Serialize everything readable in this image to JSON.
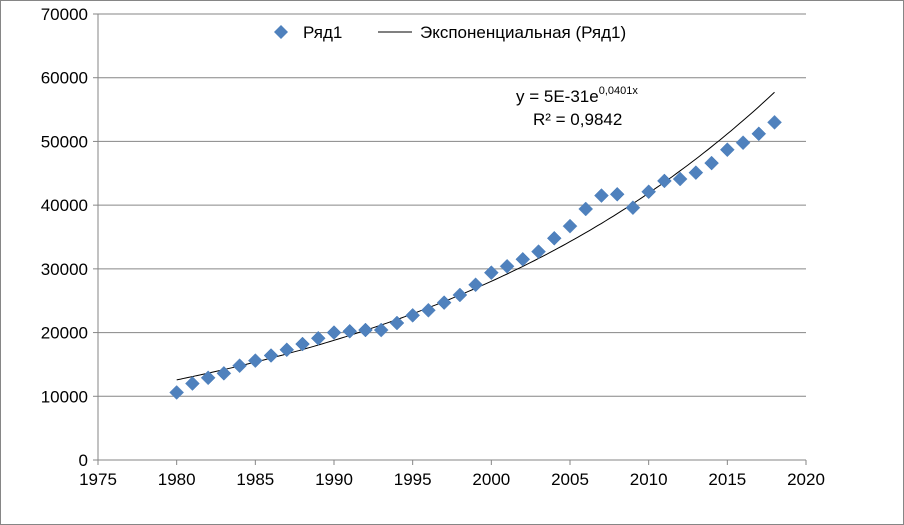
{
  "chart_data": {
    "type": "scatter",
    "title": "",
    "xlabel": "",
    "ylabel": "",
    "xlim": [
      1975,
      2020
    ],
    "ylim": [
      0,
      70000
    ],
    "x_ticks": [
      1975,
      1980,
      1985,
      1990,
      1995,
      2000,
      2005,
      2010,
      2015,
      2020
    ],
    "y_ticks": [
      0,
      10000,
      20000,
      30000,
      40000,
      50000,
      60000,
      70000
    ],
    "x_tick_labels": [
      "1975",
      "1980",
      "1985",
      "1990",
      "1995",
      "2000",
      "2005",
      "2010",
      "2015",
      "2020"
    ],
    "y_tick_labels": [
      "0",
      "10000",
      "20000",
      "30000",
      "40000",
      "50000",
      "60000",
      "70000"
    ],
    "grid": "horizontal",
    "legend_position": "top",
    "series": [
      {
        "name": "Ряд1",
        "marker": "diamond",
        "color": "#4f81bd",
        "x": [
          1980,
          1981,
          1982,
          1983,
          1984,
          1985,
          1986,
          1987,
          1988,
          1989,
          1990,
          1991,
          1992,
          1993,
          1994,
          1995,
          1996,
          1997,
          1998,
          1999,
          2000,
          2001,
          2002,
          2003,
          2004,
          2005,
          2006,
          2007,
          2008,
          2009,
          2010,
          2011,
          2012,
          2013,
          2014,
          2015,
          2016,
          2017,
          2018
        ],
        "y": [
          10600,
          12000,
          12900,
          13600,
          14800,
          15600,
          16400,
          17300,
          18200,
          19100,
          20000,
          20200,
          20400,
          20400,
          21500,
          22700,
          23500,
          24700,
          25900,
          27500,
          29400,
          30400,
          31500,
          32700,
          34800,
          36700,
          39400,
          41500,
          41700,
          39600,
          42100,
          43800,
          44100,
          45100,
          46600,
          48700,
          49800,
          51200,
          53000
        ]
      }
    ],
    "trendline": {
      "name": "Экспоненциальная (Ряд1)",
      "type": "exponential",
      "a": 5e-31,
      "b": 0.0401,
      "color": "#000000",
      "x_range": [
        1980,
        2018
      ]
    },
    "annotation": {
      "equation_prefix": "y = 5E-31e",
      "equation_exponent": "0,0401x",
      "r_squared": "R² = 0,9842"
    }
  }
}
